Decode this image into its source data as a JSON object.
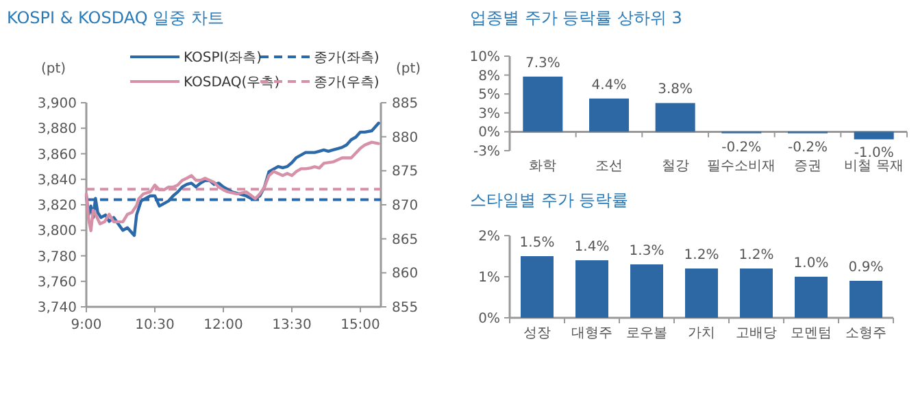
{
  "chart_data": [
    {
      "type": "line",
      "title": "KOSPI & KOSDAQ 일중 차트",
      "ylabel": "(pt)",
      "y2label": "(pt)",
      "legend": "top",
      "xlim": [
        9,
        15.45
      ],
      "xticks": [
        {
          "value": 9,
          "label": "9:00"
        },
        {
          "value": 10.5,
          "label": "10:30"
        },
        {
          "value": 12,
          "label": "12:00"
        },
        {
          "value": 13.5,
          "label": "13:30"
        },
        {
          "value": 15,
          "label": "15:00"
        }
      ],
      "ylim": [
        3740,
        3900
      ],
      "yticks": [
        {
          "value": 3740,
          "label": "3,740"
        },
        {
          "value": 3760,
          "label": "3,760"
        },
        {
          "value": 3780,
          "label": "3,780"
        },
        {
          "value": 3800,
          "label": "3,800"
        },
        {
          "value": 3820,
          "label": "3,820"
        },
        {
          "value": 3840,
          "label": "3,840"
        },
        {
          "value": 3860,
          "label": "3,860"
        },
        {
          "value": 3880,
          "label": "3,880"
        },
        {
          "value": 3900,
          "label": "3,900"
        }
      ],
      "y2lim": [
        855,
        885
      ],
      "y2ticks": [
        855,
        860,
        865,
        870,
        875,
        880,
        885
      ],
      "series": [
        {
          "name": "KOSPI(좌측)",
          "color": "#2b69a8",
          "x": [
            9.0,
            9.05,
            9.1,
            9.15,
            9.2,
            9.25,
            9.32,
            9.42,
            9.5,
            9.6,
            9.7,
            9.8,
            9.9,
            10.0,
            10.05,
            10.1,
            10.2,
            10.3,
            10.4,
            10.5,
            10.6,
            10.7,
            10.8,
            10.9,
            11.0,
            11.1,
            11.2,
            11.3,
            11.4,
            11.5,
            11.6,
            11.7,
            11.8,
            11.9,
            12.0,
            12.1,
            12.2,
            12.3,
            12.4,
            12.5,
            12.6,
            12.7,
            12.8,
            12.9,
            13.0,
            13.1,
            13.2,
            13.3,
            13.4,
            13.5,
            13.6,
            13.7,
            13.8,
            13.9,
            14.0,
            14.1,
            14.2,
            14.3,
            14.4,
            14.5,
            14.6,
            14.7,
            14.8,
            14.9,
            15.0,
            15.1,
            15.25,
            15.35,
            15.4
          ],
          "values": [
            3827,
            3812,
            3819,
            3810,
            3825,
            3814,
            3810,
            3812,
            3807,
            3810,
            3805,
            3800,
            3802,
            3798,
            3796,
            3812,
            3823,
            3825,
            3827,
            3827,
            3819,
            3821,
            3823,
            3827,
            3830,
            3834,
            3836,
            3837,
            3834,
            3837,
            3839,
            3839,
            3836,
            3837,
            3834,
            3832,
            3830,
            3829,
            3828,
            3827,
            3825,
            3825,
            3827,
            3834,
            3846,
            3848,
            3850,
            3849,
            3850,
            3853,
            3857,
            3859,
            3861,
            3861,
            3861,
            3862,
            3863,
            3862,
            3863,
            3864,
            3865,
            3867,
            3871,
            3873,
            3877,
            3877,
            3878,
            3882,
            3884
          ]
        },
        {
          "name": "KOSDAQ(우측)",
          "color": "#d690a8",
          "axis": "y2",
          "x": [
            9.0,
            9.05,
            9.1,
            9.15,
            9.2,
            9.3,
            9.4,
            9.5,
            9.6,
            9.7,
            9.8,
            9.9,
            10.0,
            10.1,
            10.15,
            10.25,
            10.4,
            10.5,
            10.6,
            10.7,
            10.8,
            10.9,
            11.0,
            11.1,
            11.2,
            11.3,
            11.4,
            11.5,
            11.6,
            11.7,
            11.8,
            11.9,
            12.0,
            12.1,
            12.3,
            12.5,
            12.7,
            12.8,
            12.9,
            13.0,
            13.1,
            13.2,
            13.3,
            13.4,
            13.5,
            13.6,
            13.7,
            13.8,
            13.9,
            14.0,
            14.1,
            14.2,
            14.4,
            14.6,
            14.8,
            14.9,
            15.0,
            15.1,
            15.25,
            15.4
          ],
          "values": [
            871.6,
            867.9,
            866.2,
            869.2,
            868.6,
            867.2,
            867.5,
            868.6,
            867.5,
            867.5,
            867.5,
            868.6,
            868.9,
            869.9,
            870.9,
            871.6,
            871.9,
            872.9,
            872.2,
            872.2,
            872.6,
            872.6,
            872.9,
            873.6,
            873.9,
            874.3,
            873.6,
            873.6,
            873.9,
            873.6,
            873.3,
            872.6,
            872.2,
            871.9,
            871.6,
            871.9,
            870.9,
            871.6,
            872.6,
            874.3,
            874.9,
            874.6,
            874.3,
            874.6,
            874.3,
            874.9,
            875.3,
            875.3,
            875.4,
            875.6,
            875.4,
            876.1,
            876.3,
            876.9,
            876.9,
            877.6,
            878.3,
            878.8,
            879.2,
            879.0
          ]
        }
      ],
      "ref_lines": [
        {
          "axis": "y",
          "value": 3824,
          "label": "종가(좌측)",
          "color": "#2b69a8",
          "line_style": "dashed"
        },
        {
          "axis": "y2",
          "value": 872.3,
          "label": "종가(우측)",
          "color": "#d690a8",
          "line_style": "dashed"
        }
      ]
    },
    {
      "type": "bar",
      "title": "업종별 주가 등락률 상하위 3",
      "categories": [
        "화학",
        "조선",
        "철강",
        "필수소비재",
        "증권",
        "비철 목재"
      ],
      "values": [
        7.3,
        4.4,
        3.8,
        -0.2,
        -0.2,
        -1.0
      ],
      "value_labels": [
        "7.3%",
        "4.4%",
        "3.8%",
        "-0.2%",
        "-0.2%",
        "-1.0%"
      ],
      "color": "#2e68a4",
      "ylim": [
        -2.5,
        10
      ],
      "yticks": [
        {
          "value": -2.5,
          "label": "-3%"
        },
        {
          "value": 0,
          "label": "0%"
        },
        {
          "value": 2.5,
          "label": "3%"
        },
        {
          "value": 5,
          "label": "5%"
        },
        {
          "value": 7.5,
          "label": "8%"
        },
        {
          "value": 10,
          "label": "10%"
        }
      ]
    },
    {
      "type": "bar",
      "title": "스타일별 주가 등락률",
      "categories": [
        "성장",
        "대형주",
        "로우볼",
        "가치",
        "고배당",
        "모멘텀",
        "소형주"
      ],
      "values": [
        1.5,
        1.4,
        1.3,
        1.2,
        1.2,
        1.0,
        0.9
      ],
      "value_labels": [
        "1.5%",
        "1.4%",
        "1.3%",
        "1.2%",
        "1.2%",
        "1.0%",
        "0.9%"
      ],
      "color": "#2e68a4",
      "ylim": [
        0,
        2
      ],
      "yticks": [
        {
          "value": 0,
          "label": "0%"
        },
        {
          "value": 1,
          "label": "1%"
        },
        {
          "value": 2,
          "label": "2%"
        }
      ]
    }
  ]
}
